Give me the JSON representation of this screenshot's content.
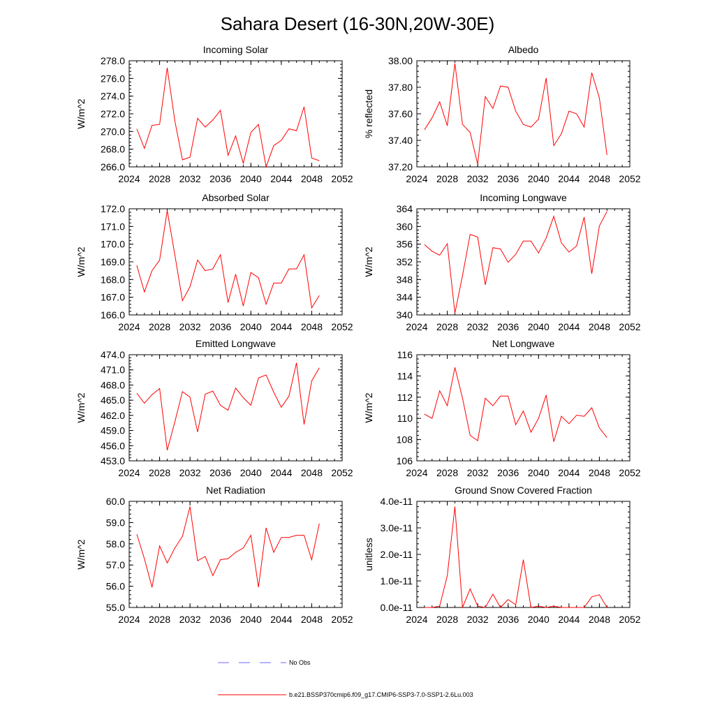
{
  "figure": {
    "title": "Sahara Desert (16-30N,20W-30E)",
    "line_color": "#ff0000",
    "obs_color": "#6a6aff"
  },
  "legend": {
    "obs_label": "No Obs",
    "model_label": "b.e21.BSSP370cmip6.f09_g17.CMIP6-SSP3-7.0-SSP1-2.6Lu.003"
  },
  "chart_data": [
    {
      "type": "line",
      "title": "Incoming Solar",
      "xlabel": "",
      "ylabel": "W/m^2",
      "xlim": [
        2024,
        2052
      ],
      "ylim": [
        266.0,
        278.0
      ],
      "xticks": [
        2024,
        2028,
        2032,
        2036,
        2040,
        2044,
        2048,
        2052
      ],
      "yticks": [
        "266.0",
        "268.0",
        "270.0",
        "272.0",
        "274.0",
        "276.0",
        "278.0"
      ],
      "x": [
        2025,
        2026,
        2027,
        2028,
        2029,
        2030,
        2031,
        2032,
        2033,
        2034,
        2035,
        2036,
        2037,
        2038,
        2039,
        2040,
        2041,
        2042,
        2043,
        2044,
        2045,
        2046,
        2047,
        2048,
        2049
      ],
      "series": [
        {
          "values": [
            270.3,
            268.1,
            270.7,
            270.8,
            277.2,
            271.2,
            266.8,
            267.1,
            271.5,
            270.5,
            271.3,
            272.4,
            267.3,
            269.5,
            266.4,
            269.9,
            270.8,
            266.0,
            268.4,
            269.0,
            270.3,
            270.1,
            272.8,
            267.0,
            266.7
          ]
        }
      ]
    },
    {
      "type": "line",
      "title": "Albedo",
      "xlabel": "",
      "ylabel": "% reflected",
      "xlim": [
        2024,
        2052
      ],
      "ylim": [
        37.2,
        38.0
      ],
      "xticks": [
        2024,
        2028,
        2032,
        2036,
        2040,
        2044,
        2048,
        2052
      ],
      "yticks": [
        "37.20",
        "37.40",
        "37.60",
        "37.80",
        "38.00"
      ],
      "x": [
        2025,
        2026,
        2027,
        2028,
        2029,
        2030,
        2031,
        2032,
        2033,
        2034,
        2035,
        2036,
        2037,
        2038,
        2039,
        2040,
        2041,
        2042,
        2043,
        2044,
        2045,
        2046,
        2047,
        2048,
        2049
      ],
      "series": [
        {
          "values": [
            37.48,
            37.57,
            37.69,
            37.51,
            37.98,
            37.52,
            37.46,
            37.22,
            37.73,
            37.64,
            37.81,
            37.8,
            37.62,
            37.52,
            37.5,
            37.56,
            37.87,
            37.36,
            37.45,
            37.62,
            37.6,
            37.5,
            37.91,
            37.72,
            37.29
          ]
        }
      ]
    },
    {
      "type": "line",
      "title": "Absorbed Solar",
      "xlabel": "",
      "ylabel": "W/m^2",
      "xlim": [
        2024,
        2052
      ],
      "ylim": [
        166.0,
        172.0
      ],
      "xticks": [
        2024,
        2028,
        2032,
        2036,
        2040,
        2044,
        2048,
        2052
      ],
      "yticks": [
        "166.0",
        "167.0",
        "168.0",
        "169.0",
        "170.0",
        "171.0",
        "172.0"
      ],
      "x": [
        2025,
        2026,
        2027,
        2028,
        2029,
        2030,
        2031,
        2032,
        2033,
        2034,
        2035,
        2036,
        2037,
        2038,
        2039,
        2040,
        2041,
        2042,
        2043,
        2044,
        2045,
        2046,
        2047,
        2048,
        2049
      ],
      "series": [
        {
          "values": [
            168.8,
            167.3,
            168.5,
            169.1,
            171.9,
            169.4,
            166.8,
            167.6,
            169.1,
            168.5,
            168.6,
            169.4,
            166.7,
            168.3,
            166.5,
            168.4,
            168.1,
            166.6,
            167.8,
            167.8,
            168.6,
            168.6,
            169.4,
            166.4,
            167.1
          ]
        }
      ]
    },
    {
      "type": "line",
      "title": "Incoming Longwave",
      "xlabel": "",
      "ylabel": "W/m^2",
      "xlim": [
        2024,
        2052
      ],
      "ylim": [
        340,
        364
      ],
      "xticks": [
        2024,
        2028,
        2032,
        2036,
        2040,
        2044,
        2048,
        2052
      ],
      "yticks": [
        "340",
        "344",
        "348",
        "352",
        "356",
        "360",
        "364"
      ],
      "x": [
        2025,
        2026,
        2027,
        2028,
        2029,
        2030,
        2031,
        2032,
        2033,
        2034,
        2035,
        2036,
        2037,
        2038,
        2039,
        2040,
        2041,
        2042,
        2043,
        2044,
        2045,
        2046,
        2047,
        2048,
        2049
      ],
      "series": [
        {
          "values": [
            355.9,
            354.4,
            353.5,
            356.1,
            340.4,
            348.9,
            358.2,
            357.6,
            346.8,
            355.2,
            354.9,
            351.9,
            353.7,
            356.7,
            356.7,
            354.0,
            357.4,
            362.3,
            356.3,
            354.2,
            355.6,
            362.1,
            349.3,
            360.1,
            363.4
          ]
        }
      ]
    },
    {
      "type": "line",
      "title": "Emitted Longwave",
      "xlabel": "",
      "ylabel": "W/m^2",
      "xlim": [
        2024,
        2052
      ],
      "ylim": [
        453.0,
        474.0
      ],
      "xticks": [
        2024,
        2028,
        2032,
        2036,
        2040,
        2044,
        2048,
        2052
      ],
      "yticks": [
        "453.0",
        "456.0",
        "459.0",
        "462.0",
        "465.0",
        "468.0",
        "471.0",
        "474.0"
      ],
      "x": [
        2025,
        2026,
        2027,
        2028,
        2029,
        2030,
        2031,
        2032,
        2033,
        2034,
        2035,
        2036,
        2037,
        2038,
        2039,
        2040,
        2041,
        2042,
        2043,
        2044,
        2045,
        2046,
        2047,
        2048,
        2049
      ],
      "series": [
        {
          "values": [
            466.4,
            464.4,
            466.1,
            467.3,
            455.1,
            460.7,
            466.7,
            465.6,
            458.7,
            466.2,
            466.8,
            464.0,
            463.0,
            467.4,
            465.5,
            464.0,
            469.4,
            470.0,
            466.6,
            463.6,
            465.8,
            472.4,
            460.2,
            468.8,
            471.4
          ]
        }
      ]
    },
    {
      "type": "line",
      "title": "Net Longwave",
      "xlabel": "",
      "ylabel": "W/m^2",
      "xlim": [
        2024,
        2052
      ],
      "ylim": [
        106,
        116
      ],
      "xticks": [
        2024,
        2028,
        2032,
        2036,
        2040,
        2044,
        2048,
        2052
      ],
      "yticks": [
        "106",
        "108",
        "110",
        "112",
        "114",
        "116"
      ],
      "x": [
        2025,
        2026,
        2027,
        2028,
        2029,
        2030,
        2031,
        2032,
        2033,
        2034,
        2035,
        2036,
        2037,
        2038,
        2039,
        2040,
        2041,
        2042,
        2043,
        2044,
        2045,
        2046,
        2047,
        2048,
        2049
      ],
      "series": [
        {
          "values": [
            110.4,
            110.0,
            112.6,
            111.2,
            114.8,
            111.9,
            108.4,
            107.9,
            111.9,
            111.2,
            112.1,
            112.1,
            109.4,
            110.7,
            108.7,
            110.0,
            112.2,
            107.8,
            110.2,
            109.5,
            110.3,
            110.2,
            111.0,
            109.1,
            108.2
          ]
        }
      ]
    },
    {
      "type": "line",
      "title": "Net Radiation",
      "xlabel": "",
      "ylabel": "W/m^2",
      "xlim": [
        2024,
        2052
      ],
      "ylim": [
        55.0,
        60.0
      ],
      "xticks": [
        2024,
        2028,
        2032,
        2036,
        2040,
        2044,
        2048,
        2052
      ],
      "yticks": [
        "55.0",
        "56.0",
        "57.0",
        "58.0",
        "59.0",
        "60.0"
      ],
      "x": [
        2025,
        2026,
        2027,
        2028,
        2029,
        2030,
        2031,
        2032,
        2033,
        2034,
        2035,
        2036,
        2037,
        2038,
        2039,
        2040,
        2041,
        2042,
        2043,
        2044,
        2045,
        2046,
        2047,
        2048,
        2049
      ],
      "series": [
        {
          "values": [
            58.45,
            57.3,
            55.95,
            57.9,
            57.1,
            57.8,
            58.35,
            59.75,
            57.2,
            57.4,
            56.5,
            57.25,
            57.3,
            57.6,
            57.8,
            58.4,
            55.95,
            58.75,
            57.6,
            58.3,
            58.3,
            58.4,
            58.4,
            57.25,
            58.95
          ]
        }
      ]
    },
    {
      "type": "line",
      "title": "Ground Snow Covered Fraction",
      "xlabel": "",
      "ylabel": "unitless",
      "xlim": [
        2024,
        2052
      ],
      "ylim": [
        0.0,
        4e-11
      ],
      "xticks": [
        2024,
        2028,
        2032,
        2036,
        2040,
        2044,
        2048,
        2052
      ],
      "yticks": [
        "0.0e-11",
        "1.0e-11",
        "2.0e-11",
        "3.0e-11",
        "4.0e-11"
      ],
      "x": [
        2025,
        2026,
        2027,
        2028,
        2029,
        2030,
        2031,
        2032,
        2033,
        2034,
        2035,
        2036,
        2037,
        2038,
        2039,
        2040,
        2041,
        2042,
        2043,
        2044,
        2045,
        2046,
        2047,
        2048,
        2049
      ],
      "series": [
        {
          "values": [
            0,
            0,
            5e-13,
            1.2e-11,
            3.8e-11,
            0,
            7e-12,
            5e-13,
            0,
            5e-12,
            0,
            3e-12,
            1e-12,
            1.8e-11,
            0,
            5e-13,
            0,
            5e-13,
            0,
            0,
            0,
            0,
            4e-12,
            4.8e-12,
            0
          ]
        }
      ]
    }
  ]
}
